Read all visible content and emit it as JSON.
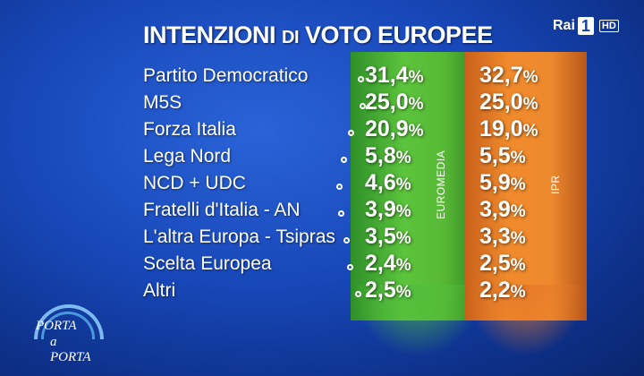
{
  "header": {
    "title_word1": "INTENZIONI",
    "title_word2": "DI",
    "title_word3": "VOTO EUROPEE"
  },
  "channel": {
    "brand": "Rai",
    "number": "1",
    "badge": "HD"
  },
  "show": {
    "line1": "PORTA",
    "line2": "a PORTA"
  },
  "chart_data": {
    "type": "table",
    "title": "INTENZIONI DI VOTO EUROPEE",
    "unit": "%",
    "categories": [
      "Partito Democratico",
      "M5S",
      "Forza Italia",
      "Lega Nord",
      "NCD + UDC",
      "Fratelli d'Italia - AN",
      "L'altra Europa - Tsipras",
      "Scelta Europea",
      "Altri"
    ],
    "series": [
      {
        "name": "EUROMEDIA",
        "color": "#4fb234",
        "labels": [
          "31,4",
          "25,0",
          "20,9",
          "5,8",
          "4,6",
          "3,9",
          "3,5",
          "2,4",
          "2,5"
        ],
        "values": [
          31.4,
          25.0,
          20.9,
          5.8,
          4.6,
          3.9,
          3.5,
          2.4,
          2.5
        ]
      },
      {
        "name": "IPR",
        "color": "#ee8a2e",
        "labels": [
          "32,7",
          "25,0",
          "19,0",
          "5,5",
          "5,9",
          "3,9",
          "3,3",
          "2,5",
          "2,2"
        ],
        "values": [
          32.7,
          25.0,
          19.0,
          5.5,
          5.9,
          3.9,
          3.3,
          2.5,
          2.2
        ]
      }
    ]
  },
  "colors": {
    "background": "#1747b8",
    "euromedia_band": "#4fb234",
    "ipr_band": "#ee8a2e",
    "text": "#ffffff"
  }
}
